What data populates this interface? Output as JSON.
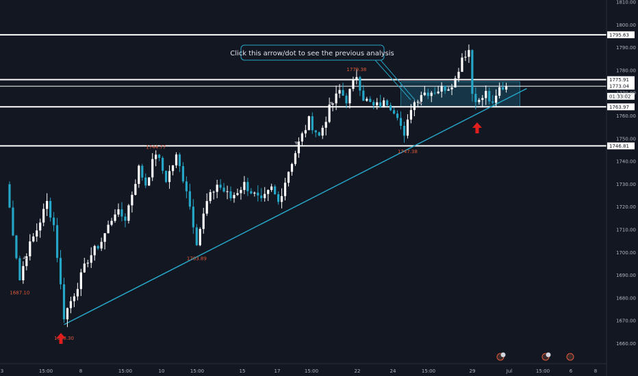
{
  "colors": {
    "background": "#131722",
    "up": "#ffffff",
    "down": "#26a6c7",
    "trendline": "#26a6c7",
    "level": "#ffffff",
    "red": "#e01e1e"
  },
  "chart_data": {
    "type": "candlestick",
    "title": "",
    "xlabel": "",
    "ylabel": "",
    "ylim": [
      1652,
      1812
    ],
    "y_ticks": [
      1660,
      1670,
      1680,
      1690,
      1700,
      1710,
      1720,
      1730,
      1740,
      1750,
      1760,
      1770,
      1780,
      1790,
      1800,
      1810
    ],
    "x_ticks": [
      "3",
      "15:00",
      "8",
      "15:00",
      "10",
      "15:00",
      "15",
      "17",
      "15:00",
      "22",
      "24",
      "15:00",
      "29",
      "Jul",
      "15:00",
      "6",
      "8"
    ],
    "grid": false,
    "horizontal_levels": [
      {
        "label": "1795.63",
        "value": 1795.63
      },
      {
        "label": "1775.91",
        "value": 1775.91
      },
      {
        "label": "1773.04",
        "value": 1773.04
      },
      {
        "label": "1763.97",
        "value": 1763.97
      },
      {
        "label": "1746.81",
        "value": 1746.81
      }
    ],
    "countdown_label": "01:33:02",
    "trendline": {
      "from": {
        "bar": 17,
        "price": 1668.3
      },
      "to": {
        "bar": 153,
        "price": 1772
      }
    },
    "range_box": {
      "from_bar": 116,
      "to_bar": 151,
      "high": 1775,
      "low": 1764
    },
    "extreme_labels": [
      {
        "text": "1687.10",
        "bar": 4,
        "price": 1684
      },
      {
        "text": "1668.30",
        "bar": 17,
        "price": 1664
      },
      {
        "text": "1744.77",
        "bar": 44,
        "price": 1748
      },
      {
        "text": "1703.89",
        "bar": 56,
        "price": 1699
      },
      {
        "text": "1779.38",
        "bar": 103,
        "price": 1782
      },
      {
        "text": "1747.38",
        "bar": 118,
        "price": 1746
      }
    ],
    "annotation": "Click this arrow/dot to see the previous analysis",
    "event_badges": [
      "1",
      "2",
      "",
      ""
    ],
    "anchors": [
      [
        0,
        1730
      ],
      [
        4,
        1688
      ],
      [
        6,
        1700
      ],
      [
        9,
        1710
      ],
      [
        12,
        1722
      ],
      [
        14,
        1712
      ],
      [
        17,
        1672
      ],
      [
        20,
        1682
      ],
      [
        24,
        1697
      ],
      [
        28,
        1705
      ],
      [
        32,
        1718
      ],
      [
        35,
        1715
      ],
      [
        39,
        1737
      ],
      [
        41,
        1730
      ],
      [
        44,
        1744
      ],
      [
        47,
        1732
      ],
      [
        50,
        1742
      ],
      [
        53,
        1728
      ],
      [
        56,
        1705
      ],
      [
        59,
        1722
      ],
      [
        62,
        1730
      ],
      [
        66,
        1724
      ],
      [
        70,
        1730
      ],
      [
        75,
        1722
      ],
      [
        78,
        1728
      ],
      [
        80,
        1722
      ],
      [
        83,
        1736
      ],
      [
        86,
        1748
      ],
      [
        89,
        1758
      ],
      [
        92,
        1751
      ],
      [
        95,
        1763
      ],
      [
        98,
        1771
      ],
      [
        100,
        1767
      ],
      [
        103,
        1778
      ],
      [
        105,
        1768
      ],
      [
        108,
        1764
      ],
      [
        112,
        1766
      ],
      [
        115,
        1761
      ],
      [
        117,
        1750
      ],
      [
        119,
        1764
      ],
      [
        122,
        1770
      ],
      [
        126,
        1771
      ],
      [
        130,
        1773
      ],
      [
        132,
        1776
      ],
      [
        134,
        1786
      ],
      [
        136,
        1789
      ],
      [
        137,
        1770
      ],
      [
        139,
        1766
      ],
      [
        141,
        1770
      ],
      [
        143,
        1764
      ],
      [
        145,
        1772
      ],
      [
        147,
        1773
      ]
    ],
    "bar_count": 148
  }
}
